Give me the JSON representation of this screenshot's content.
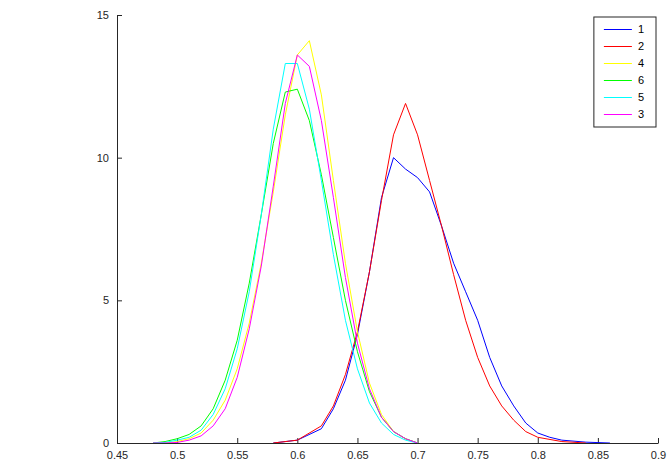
{
  "chart_data": {
    "type": "line",
    "xlim": [
      0.45,
      0.9
    ],
    "xticks": [
      0.45,
      0.5,
      0.55,
      0.6,
      0.65,
      0.7,
      0.75,
      0.8,
      0.85,
      0.9
    ],
    "ylim": [
      0,
      15
    ],
    "yticks": [
      0,
      5,
      10,
      15
    ],
    "grid": false,
    "legend": "top-right",
    "series": [
      {
        "name": "1",
        "color": "#0000ff",
        "x": [
          0.58,
          0.6,
          0.62,
          0.63,
          0.64,
          0.65,
          0.66,
          0.67,
          0.68,
          0.69,
          0.7,
          0.71,
          0.72,
          0.73,
          0.74,
          0.75,
          0.76,
          0.77,
          0.78,
          0.79,
          0.8,
          0.81,
          0.82,
          0.84,
          0.86
        ],
        "values": [
          0,
          0.1,
          0.5,
          1.2,
          2.2,
          3.8,
          6.0,
          8.6,
          10.0,
          9.6,
          9.3,
          8.8,
          7.6,
          6.3,
          5.3,
          4.3,
          3.0,
          2.0,
          1.3,
          0.7,
          0.35,
          0.2,
          0.1,
          0.03,
          0
        ]
      },
      {
        "name": "2",
        "color": "#ff0000",
        "x": [
          0.58,
          0.6,
          0.62,
          0.63,
          0.64,
          0.65,
          0.66,
          0.67,
          0.68,
          0.69,
          0.7,
          0.71,
          0.72,
          0.73,
          0.74,
          0.75,
          0.76,
          0.77,
          0.78,
          0.79,
          0.8,
          0.82,
          0.84
        ],
        "values": [
          0,
          0.1,
          0.6,
          1.3,
          2.4,
          3.9,
          6.0,
          8.5,
          10.8,
          11.9,
          10.8,
          9.2,
          7.6,
          5.9,
          4.3,
          3.0,
          2.0,
          1.3,
          0.8,
          0.4,
          0.2,
          0.05,
          0
        ]
      },
      {
        "name": "4",
        "color": "#ffff00",
        "x": [
          0.48,
          0.49,
          0.5,
          0.51,
          0.52,
          0.53,
          0.54,
          0.55,
          0.56,
          0.57,
          0.58,
          0.59,
          0.6,
          0.61,
          0.62,
          0.63,
          0.64,
          0.65,
          0.66,
          0.67,
          0.68,
          0.69,
          0.7
        ],
        "values": [
          0,
          0,
          0.05,
          0.15,
          0.35,
          0.8,
          1.5,
          2.6,
          4.2,
          6.3,
          8.8,
          11.5,
          13.6,
          14.1,
          12.2,
          9.2,
          6.3,
          3.9,
          2.1,
          1.0,
          0.4,
          0.15,
          0
        ]
      },
      {
        "name": "6",
        "color": "#00ff00",
        "x": [
          0.48,
          0.49,
          0.5,
          0.51,
          0.52,
          0.53,
          0.54,
          0.55,
          0.56,
          0.57,
          0.58,
          0.59,
          0.6,
          0.61,
          0.62,
          0.63,
          0.64,
          0.65,
          0.66,
          0.67,
          0.68,
          0.69,
          0.7
        ],
        "values": [
          0,
          0.05,
          0.15,
          0.3,
          0.6,
          1.2,
          2.2,
          3.6,
          5.6,
          8.0,
          10.5,
          12.3,
          12.4,
          11.3,
          9.4,
          7.2,
          5.0,
          3.2,
          1.8,
          0.9,
          0.4,
          0.15,
          0
        ]
      },
      {
        "name": "5",
        "color": "#00ffff",
        "x": [
          0.48,
          0.49,
          0.5,
          0.51,
          0.52,
          0.53,
          0.54,
          0.55,
          0.56,
          0.57,
          0.58,
          0.59,
          0.6,
          0.61,
          0.62,
          0.63,
          0.64,
          0.65,
          0.66,
          0.67,
          0.68,
          0.69,
          0.7
        ],
        "values": [
          0,
          0.02,
          0.1,
          0.2,
          0.45,
          1.0,
          1.9,
          3.3,
          5.3,
          8.0,
          11.0,
          13.3,
          13.3,
          11.7,
          9.2,
          6.6,
          4.3,
          2.6,
          1.4,
          0.7,
          0.3,
          0.1,
          0
        ]
      },
      {
        "name": "3",
        "color": "#ff00ff",
        "x": [
          0.48,
          0.49,
          0.5,
          0.51,
          0.52,
          0.53,
          0.54,
          0.55,
          0.56,
          0.57,
          0.58,
          0.59,
          0.6,
          0.61,
          0.62,
          0.63,
          0.64,
          0.65,
          0.66,
          0.67,
          0.68,
          0.69,
          0.7
        ],
        "values": [
          0,
          0,
          0.02,
          0.1,
          0.25,
          0.6,
          1.2,
          2.3,
          4.0,
          6.2,
          9.0,
          11.9,
          13.6,
          13.2,
          11.3,
          8.6,
          5.8,
          3.5,
          1.9,
          0.9,
          0.4,
          0.15,
          0
        ]
      }
    ]
  }
}
